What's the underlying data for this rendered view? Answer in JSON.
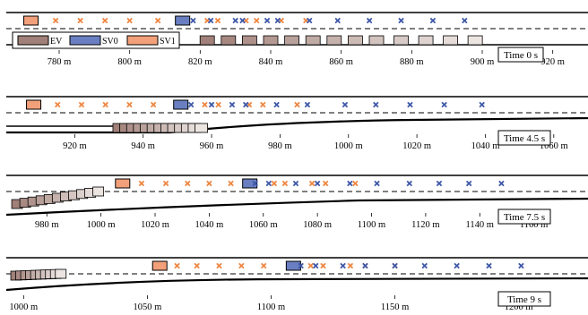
{
  "colors": {
    "ev": "#a08078",
    "sv0": "#6a7fc1",
    "sv1": "#f2a07a",
    "sv0_marker": "#3d57a8",
    "sv1_marker": "#ee8640",
    "road": "#000000"
  },
  "legend": {
    "ev_label": "EV",
    "sv0_label": "SV0",
    "sv1_label": "SV1"
  },
  "panels": [
    {
      "time_label": "Time 0 s",
      "x_range": [
        765,
        930
      ],
      "ticks": [
        {
          "value": 780,
          "label": "780 m"
        },
        {
          "value": 800,
          "label": "800 m"
        },
        {
          "value": 820,
          "label": "820 m"
        },
        {
          "value": 840,
          "label": "840 m"
        },
        {
          "value": 860,
          "label": "860 m"
        },
        {
          "value": 880,
          "label": "880 m"
        },
        {
          "value": 900,
          "label": "900 m"
        },
        {
          "value": 920,
          "label": "920 m"
        }
      ],
      "sv1_car": 772,
      "sv0_car": 815,
      "sv1_markers": [
        779,
        786,
        793,
        800,
        808,
        822,
        825,
        833,
        836,
        843,
        850
      ],
      "sv0_markers": [
        818,
        823,
        830,
        832,
        839,
        842,
        851,
        859,
        868,
        877,
        886,
        895
      ],
      "ev_cars": [
        822,
        828,
        834,
        840,
        846,
        852,
        858,
        864,
        870,
        877,
        884,
        891,
        898
      ]
    },
    {
      "time_label": "Time 4.5 s",
      "x_range": [
        900,
        1070
      ],
      "ticks": [
        {
          "value": 920,
          "label": "920 m"
        },
        {
          "value": 940,
          "label": "940 m"
        },
        {
          "value": 960,
          "label": "960 m"
        },
        {
          "value": 980,
          "label": "980 m"
        },
        {
          "value": 1000,
          "label": "1000 m"
        },
        {
          "value": 1020,
          "label": "1020 m"
        },
        {
          "value": 1040,
          "label": "1040 m"
        },
        {
          "value": 1060,
          "label": "1060 m"
        }
      ],
      "sv1_car": 908,
      "sv0_car": 951,
      "sv1_markers": [
        915,
        922,
        929,
        936,
        943,
        958,
        962,
        971,
        975,
        985
      ],
      "sv0_markers": [
        954,
        960,
        966,
        970,
        979,
        988,
        999,
        1008,
        1018,
        1028,
        1039
      ],
      "ev_cars": [
        933,
        935,
        937,
        939,
        941,
        943,
        945,
        947,
        949,
        951,
        953,
        955,
        957
      ]
    },
    {
      "time_label": "Time 7.5 s",
      "x_range": [
        965,
        1180
      ],
      "ticks": [
        {
          "value": 980,
          "label": "980 m"
        },
        {
          "value": 1000,
          "label": "1000 m"
        },
        {
          "value": 1020,
          "label": "1020 m"
        },
        {
          "value": 1040,
          "label": "1040 m"
        },
        {
          "value": 1060,
          "label": "1060 m"
        },
        {
          "value": 1080,
          "label": "1080 m"
        },
        {
          "value": 1100,
          "label": "1100 m"
        },
        {
          "value": 1120,
          "label": "1120 m"
        },
        {
          "value": 1140,
          "label": "1140 m"
        },
        {
          "value": 1160,
          "label": "1160 m"
        }
      ],
      "sv1_car": 1008,
      "sv0_car": 1055,
      "sv1_markers": [
        1015,
        1024,
        1032,
        1040,
        1048,
        1064,
        1068,
        1078,
        1083,
        1094
      ],
      "sv0_markers": [
        1057,
        1062,
        1072,
        1080,
        1092,
        1102,
        1114,
        1125,
        1136,
        1148
      ],
      "ev_cars": [
        969,
        972,
        975,
        978,
        981,
        984,
        987,
        990,
        993,
        996,
        999
      ]
    },
    {
      "time_label": "Time 9 s",
      "x_range": [
        993,
        1228
      ],
      "ticks": [
        {
          "value": 1000,
          "label": "1000 m"
        },
        {
          "value": 1050,
          "label": "1050 m"
        },
        {
          "value": 1100,
          "label": "1100 m"
        },
        {
          "value": 1150,
          "label": "1150 m"
        },
        {
          "value": 1200,
          "label": "1200 m"
        }
      ],
      "sv1_car": 1055,
      "sv0_car": 1109,
      "sv1_markers": [
        1062,
        1070,
        1079,
        1088,
        1097,
        1116,
        1121,
        1132,
        1138,
        1150
      ],
      "sv0_markers": [
        1112,
        1118,
        1129,
        1138,
        1150,
        1162,
        1175,
        1188,
        1201
      ],
      "ev_cars": [
        997,
        999,
        1001,
        1003,
        1005,
        1007,
        1009,
        1011,
        1013,
        1015
      ]
    }
  ]
}
